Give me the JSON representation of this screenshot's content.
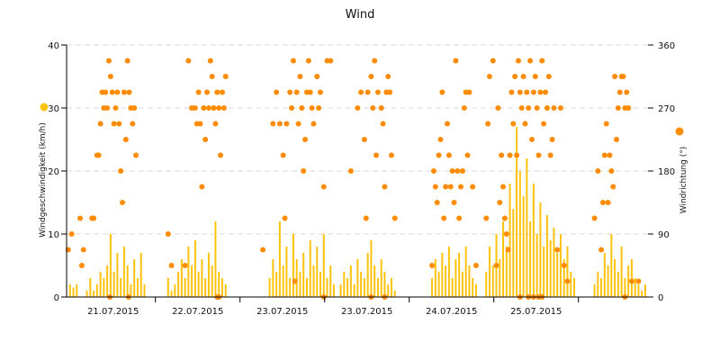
{
  "chart_data": {
    "type": "bar+scatter",
    "title": "Wind",
    "ylabel": "Windgeschwindigkeit (km/h)",
    "y2label": "Windrichtung (°)",
    "ylim": [
      0,
      40
    ],
    "y2lim": [
      0,
      360
    ],
    "yticks": [
      "0",
      "10",
      "20",
      "30",
      "40"
    ],
    "y2ticks": [
      "0",
      "90",
      "180",
      "270",
      "360"
    ],
    "xtick_labels": [
      "21.07.2015",
      "22.07.2015",
      "23.07.2015",
      "23.07.2015",
      "24.07.2015",
      "25.07.2015"
    ],
    "grid": true,
    "legend": [
      "left: Windgeschwindigkeit",
      "right: Windrichtung"
    ],
    "colors": {
      "speed": "#ffc20e",
      "direction": "#ff8c00",
      "grid": "#d8d8d8"
    },
    "x_start_day": -1.05,
    "sample_step_days": 0.04,
    "speed_series": {
      "name": "Windgeschwindigkeit (km/h)",
      "values": [
        0,
        2,
        1.5,
        2,
        0,
        0,
        1,
        3,
        1,
        2,
        4,
        3,
        5,
        10,
        4,
        7,
        3,
        8,
        5,
        2,
        6,
        3,
        7,
        2,
        0,
        0,
        0,
        0,
        0,
        0,
        3,
        1,
        2,
        4,
        6,
        3,
        8,
        5,
        9,
        4,
        6,
        3,
        7,
        5,
        12,
        4,
        3,
        2,
        0,
        0,
        0,
        0,
        0,
        0,
        0,
        0,
        0,
        0,
        0,
        0,
        3,
        6,
        4,
        12,
        5,
        8,
        3,
        10,
        6,
        4,
        7,
        3,
        9,
        5,
        8,
        4,
        10,
        3,
        5,
        2,
        0,
        2,
        4,
        3,
        5,
        2,
        6,
        4,
        3,
        7,
        9,
        5,
        3,
        6,
        4,
        2,
        3,
        1,
        0,
        0,
        0,
        0,
        0,
        0,
        0,
        0,
        0,
        0,
        3,
        6,
        4,
        7,
        5,
        8,
        3,
        6,
        7,
        4,
        8,
        5,
        3,
        2,
        0,
        0,
        4,
        8,
        5,
        10,
        6,
        12,
        8,
        18,
        14,
        27,
        20,
        16,
        22,
        12,
        18,
        10,
        15,
        8,
        13,
        9,
        11,
        7,
        10,
        6,
        8,
        4,
        3,
        0,
        0,
        0,
        0,
        0,
        2,
        4,
        3,
        7,
        5,
        10,
        6,
        4,
        8,
        3,
        5,
        6,
        3,
        2,
        1,
        2,
        0
      ]
    },
    "direction_series": {
      "name": "Windrichtung (°)",
      "points": [
        [
          0.5,
          67.5
        ],
        [
          1.5,
          90
        ],
        [
          4,
          112.5
        ],
        [
          4.5,
          45
        ],
        [
          5,
          67.5
        ],
        [
          7.5,
          112.5
        ],
        [
          8,
          112.5
        ],
        [
          9,
          202.5
        ],
        [
          9.5,
          202.5
        ],
        [
          10,
          247.5
        ],
        [
          10.5,
          292.5
        ],
        [
          11,
          270
        ],
        [
          11.5,
          292.5
        ],
        [
          12,
          270
        ],
        [
          12.5,
          337.5
        ],
        [
          13,
          315
        ],
        [
          13.5,
          292.5
        ],
        [
          14,
          247.5
        ],
        [
          14.5,
          270
        ],
        [
          15,
          292.5
        ],
        [
          15.5,
          247.5
        ],
        [
          16,
          180
        ],
        [
          16.5,
          135
        ],
        [
          17,
          292.5
        ],
        [
          17.5,
          225
        ],
        [
          18,
          337.5
        ],
        [
          18.5,
          292.5
        ],
        [
          19,
          270
        ],
        [
          19.5,
          247.5
        ],
        [
          20,
          270
        ],
        [
          20.5,
          202.5
        ],
        [
          12.8,
          0
        ],
        [
          18.3,
          0
        ],
        [
          30,
          90
        ],
        [
          31,
          45
        ],
        [
          35,
          45
        ],
        [
          36,
          337.5
        ],
        [
          37,
          270
        ],
        [
          38,
          270
        ],
        [
          38.5,
          247.5
        ],
        [
          39,
          292.5
        ],
        [
          39.5,
          247.5
        ],
        [
          40,
          157.5
        ],
        [
          40.5,
          270
        ],
        [
          41,
          225
        ],
        [
          41.5,
          292.5
        ],
        [
          42,
          270
        ],
        [
          42.5,
          337.5
        ],
        [
          43,
          315
        ],
        [
          43.5,
          270
        ],
        [
          44,
          247.5
        ],
        [
          44.5,
          292.5
        ],
        [
          45,
          270
        ],
        [
          45.5,
          202.5
        ],
        [
          46,
          292.5
        ],
        [
          46.5,
          270
        ],
        [
          47,
          315
        ],
        [
          44.5,
          0
        ],
        [
          45,
          0
        ],
        [
          58,
          67.5
        ],
        [
          61,
          247.5
        ],
        [
          62,
          292.5
        ],
        [
          63,
          247.5
        ],
        [
          64,
          202.5
        ],
        [
          64.5,
          112.5
        ],
        [
          65,
          247.5
        ],
        [
          66,
          292.5
        ],
        [
          66.5,
          270
        ],
        [
          67,
          337.5
        ],
        [
          67.5,
          22.5
        ],
        [
          68,
          292.5
        ],
        [
          68.5,
          247.5
        ],
        [
          69,
          315
        ],
        [
          69.5,
          270
        ],
        [
          70,
          180
        ],
        [
          70.5,
          225
        ],
        [
          71,
          292.5
        ],
        [
          71.5,
          337.5
        ],
        [
          72,
          292.5
        ],
        [
          72.5,
          270
        ],
        [
          73,
          247.5
        ],
        [
          74,
          315
        ],
        [
          74.5,
          270
        ],
        [
          75,
          292.5
        ],
        [
          76,
          157.5
        ],
        [
          77,
          337.5
        ],
        [
          78,
          337.5
        ],
        [
          76,
          0
        ],
        [
          84,
          180
        ],
        [
          86,
          270
        ],
        [
          87,
          292.5
        ],
        [
          88,
          225
        ],
        [
          88.5,
          112.5
        ],
        [
          89,
          292.5
        ],
        [
          90,
          315
        ],
        [
          90.5,
          270
        ],
        [
          91,
          337.5
        ],
        [
          91.5,
          202.5
        ],
        [
          92,
          292.5
        ],
        [
          93,
          270
        ],
        [
          93.5,
          247.5
        ],
        [
          94,
          157.5
        ],
        [
          94.5,
          292.5
        ],
        [
          95,
          315
        ],
        [
          95.5,
          292.5
        ],
        [
          96,
          202.5
        ],
        [
          94,
          0
        ],
        [
          90,
          0
        ],
        [
          97,
          112.5
        ],
        [
          108,
          45
        ],
        [
          108.5,
          180
        ],
        [
          109,
          157.5
        ],
        [
          109.5,
          135
        ],
        [
          110,
          202.5
        ],
        [
          110.5,
          225
        ],
        [
          111,
          292.5
        ],
        [
          111.5,
          112.5
        ],
        [
          112,
          157.5
        ],
        [
          112.5,
          247.5
        ],
        [
          113,
          202.5
        ],
        [
          113.5,
          157.5
        ],
        [
          114,
          180
        ],
        [
          114.5,
          135
        ],
        [
          115,
          337.5
        ],
        [
          115.5,
          180
        ],
        [
          116,
          112.5
        ],
        [
          116.5,
          157.5
        ],
        [
          117,
          180
        ],
        [
          117.5,
          270
        ],
        [
          118,
          292.5
        ],
        [
          118.5,
          202.5
        ],
        [
          119,
          292.5
        ],
        [
          120,
          157.5
        ],
        [
          121,
          45
        ],
        [
          124,
          112.5
        ],
        [
          124.5,
          247.5
        ],
        [
          125,
          315
        ],
        [
          126,
          337.5
        ],
        [
          127,
          45
        ],
        [
          127.5,
          270
        ],
        [
          128,
          135
        ],
        [
          128.5,
          202.5
        ],
        [
          129,
          157.5
        ],
        [
          129.5,
          112.5
        ],
        [
          130,
          90
        ],
        [
          130.5,
          67.5
        ],
        [
          131,
          202.5
        ],
        [
          131.5,
          292.5
        ],
        [
          132,
          247.5
        ],
        [
          132.5,
          315
        ],
        [
          133,
          202.5
        ],
        [
          133.5,
          337.5
        ],
        [
          134,
          292.5
        ],
        [
          134.5,
          270
        ],
        [
          135,
          315
        ],
        [
          135.5,
          247.5
        ],
        [
          136,
          292.5
        ],
        [
          136.5,
          270
        ],
        [
          137,
          337.5
        ],
        [
          137.5,
          225
        ],
        [
          138,
          292.5
        ],
        [
          138.5,
          315
        ],
        [
          139,
          270
        ],
        [
          139.5,
          202.5
        ],
        [
          140,
          292.5
        ],
        [
          140.5,
          337.5
        ],
        [
          141,
          247.5
        ],
        [
          141.5,
          292.5
        ],
        [
          142,
          270
        ],
        [
          142.5,
          315
        ],
        [
          143,
          202.5
        ],
        [
          143.5,
          225
        ],
        [
          144,
          270
        ],
        [
          145,
          67.5
        ],
        [
          146,
          270
        ],
        [
          147,
          45
        ],
        [
          148,
          22.5
        ],
        [
          134,
          0
        ],
        [
          136.5,
          0
        ],
        [
          138,
          0
        ],
        [
          139.5,
          0
        ],
        [
          140.5,
          0
        ],
        [
          156,
          112.5
        ],
        [
          157,
          180
        ],
        [
          158,
          67.5
        ],
        [
          158.5,
          135
        ],
        [
          159,
          202.5
        ],
        [
          159.5,
          247.5
        ],
        [
          160,
          135
        ],
        [
          160.5,
          202.5
        ],
        [
          161,
          180
        ],
        [
          161.5,
          157.5
        ],
        [
          162,
          315
        ],
        [
          162.5,
          225
        ],
        [
          163,
          270
        ],
        [
          163.5,
          292.5
        ],
        [
          164,
          315
        ],
        [
          164.5,
          315
        ],
        [
          165,
          270
        ],
        [
          165.5,
          292.5
        ],
        [
          166,
          270
        ],
        [
          167,
          22.5
        ],
        [
          169,
          22.5
        ],
        [
          165,
          0
        ]
      ]
    }
  }
}
